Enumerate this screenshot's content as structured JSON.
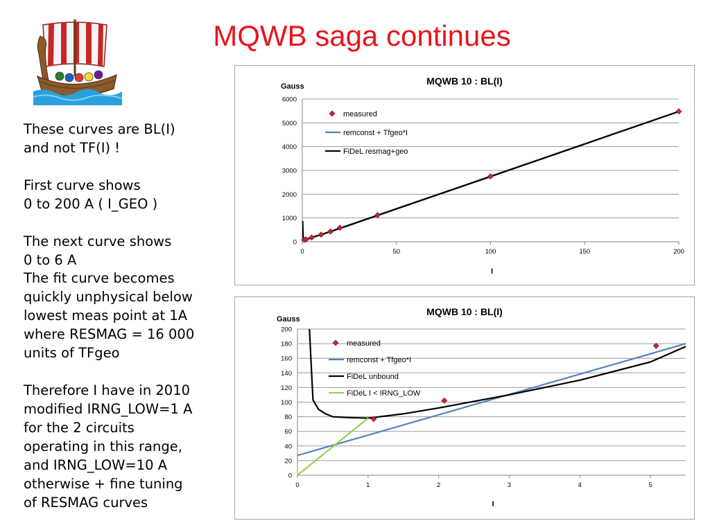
{
  "slide": {
    "title": "MQWB saga continues",
    "text_lines": [
      "These curves are BL(I)",
      "and not TF(I) !",
      "",
      "First curve shows",
      "0 to 200 A ( I_GEO )",
      "",
      "The next curve shows",
      "0 to 6 A",
      "The fit curve becomes",
      "quickly unphysical below",
      "lowest meas point at 1A",
      "where RESMAG = 16 000",
      "units of TFgeo",
      "",
      "Therefore I have in 2010",
      "modified IRNG_LOW=1 A",
      "for the 2 circuits",
      "operating in this range,",
      "and IRNG_LOW=10 A",
      "otherwise + fine tuning",
      "of RESMAG curves"
    ],
    "logo_icon": "viking-ship-icon"
  },
  "chart_data": [
    {
      "type": "line",
      "title": "MQWB 10 : BL(I)",
      "xlabel": "I",
      "ylabel": "Gauss",
      "xlim": [
        0,
        200
      ],
      "ylim": [
        0,
        6000
      ],
      "xticks": [
        0,
        50,
        100,
        150,
        200
      ],
      "yticks": [
        0,
        1000,
        2000,
        3000,
        4000,
        5000,
        6000
      ],
      "grid": "horizontal",
      "legend_position": "top-left",
      "series": [
        {
          "name": "measured",
          "kind": "scatter",
          "color": "#c0283a",
          "x": [
            1,
            2,
            5,
            10,
            15,
            20,
            40,
            100,
            200
          ],
          "y": [
            80,
            100,
            180,
            300,
            430,
            590,
            1120,
            2750,
            5480
          ]
        },
        {
          "name": "remconst + Tfgeo*I",
          "kind": "line",
          "color": "#4f81bd",
          "x": [
            0,
            200
          ],
          "y": [
            28,
            5480
          ]
        },
        {
          "name": "FiDeL resmag+geo",
          "kind": "line",
          "color": "#000000",
          "x": [
            0.2,
            0.4,
            0.6,
            1,
            2,
            5,
            10,
            20,
            50,
            100,
            150,
            200
          ],
          "y": [
            880,
            250,
            130,
            80,
            100,
            180,
            300,
            560,
            1380,
            2740,
            4110,
            5480
          ]
        }
      ]
    },
    {
      "type": "line",
      "title": "MQWB 10 : BL(I)",
      "xlabel": "I",
      "ylabel": "Gauss",
      "xlim": [
        0,
        5.5
      ],
      "ylim": [
        0,
        200
      ],
      "xticks": [
        0,
        1,
        2,
        3,
        4,
        5
      ],
      "yticks": [
        0,
        20,
        40,
        60,
        80,
        100,
        120,
        140,
        160,
        180,
        200
      ],
      "grid": "horizontal",
      "legend_position": "top-left",
      "series": [
        {
          "name": "measured",
          "kind": "scatter",
          "color": "#c0283a",
          "x": [
            1.08,
            2.08,
            5.08
          ],
          "y": [
            77,
            102,
            177
          ]
        },
        {
          "name": "remconst + Tfgeo*I",
          "kind": "line",
          "color": "#4f81bd",
          "x": [
            0,
            5.5
          ],
          "y": [
            27,
            180
          ]
        },
        {
          "name": "FiDeL unbound",
          "kind": "line",
          "color": "#000000",
          "x": [
            0.17,
            0.2,
            0.22,
            0.3,
            0.4,
            0.5,
            0.7,
            1.0,
            1.5,
            2.0,
            3.0,
            4.0,
            5.0,
            5.5
          ],
          "y": [
            200,
            140,
            103,
            90,
            84,
            80,
            79,
            78,
            84,
            92,
            110,
            130,
            155,
            176
          ]
        },
        {
          "name": "FiDeL I < IRNG_LOW",
          "kind": "line",
          "color": "#92d050",
          "x": [
            0,
            1.0
          ],
          "y": [
            0,
            78
          ]
        }
      ]
    }
  ]
}
